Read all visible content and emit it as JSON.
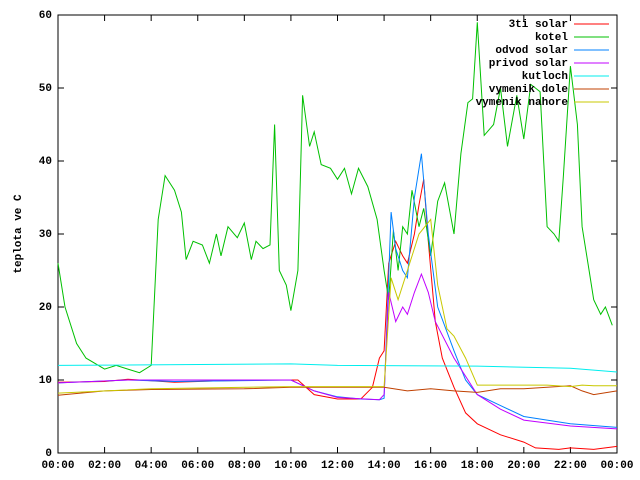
{
  "chart_data": {
    "type": "line",
    "y_label": "teplota ve C",
    "xlim": [
      0,
      24
    ],
    "xticks": [
      {
        "value": 0,
        "label": "00:00"
      },
      {
        "value": 2,
        "label": "02:00"
      },
      {
        "value": 4,
        "label": "04:00"
      },
      {
        "value": 6,
        "label": "06:00"
      },
      {
        "value": 8,
        "label": "08:00"
      },
      {
        "value": 10,
        "label": "10:00"
      },
      {
        "value": 12,
        "label": "12:00"
      },
      {
        "value": 14,
        "label": "14:00"
      },
      {
        "value": 16,
        "label": "16:00"
      },
      {
        "value": 18,
        "label": "18:00"
      },
      {
        "value": 20,
        "label": "20:00"
      },
      {
        "value": 22,
        "label": "22:00"
      },
      {
        "value": 24,
        "label": "00:00"
      }
    ],
    "ylim": [
      0,
      60
    ],
    "yticks": [
      0,
      10,
      20,
      30,
      40,
      50,
      60
    ],
    "grid": false,
    "legend": "top-right",
    "series": [
      {
        "name": "3ti solar",
        "color": "#ff0000",
        "x": [
          0,
          2,
          3,
          5,
          7,
          9,
          10.3,
          11,
          12,
          13,
          13.5,
          13.8,
          14,
          14.2,
          14.5,
          14.8,
          15,
          15.3,
          15.5,
          15.7,
          15.9,
          16.2,
          16.5,
          17,
          17.5,
          18,
          19,
          20,
          20.5,
          21.5,
          22,
          23,
          24
        ],
        "values": [
          9.7,
          9.8,
          10.1,
          9.7,
          9.9,
          10,
          10,
          8,
          7.4,
          7.4,
          9,
          13,
          14,
          26,
          29,
          27,
          26,
          30,
          34,
          37.5,
          29,
          18,
          13,
          9,
          5.5,
          4,
          2.5,
          1.5,
          0.7,
          0.5,
          0.7,
          0.5,
          0.9
        ]
      },
      {
        "name": "kotel",
        "color": "#00c000",
        "x": [
          0,
          0.3,
          0.8,
          1.2,
          2,
          2.5,
          3,
          3.5,
          4,
          4.3,
          4.6,
          5,
          5.3,
          5.5,
          5.8,
          6.2,
          6.5,
          6.8,
          7,
          7.3,
          7.7,
          8,
          8.3,
          8.5,
          8.8,
          9.1,
          9.3,
          9.5,
          9.8,
          10,
          10.3,
          10.5,
          10.8,
          11,
          11.3,
          11.7,
          12,
          12.3,
          12.6,
          12.9,
          13.3,
          13.7,
          14,
          14.2,
          14.4,
          14.6,
          14.8,
          15,
          15.2,
          15.5,
          15.7,
          16,
          16.3,
          16.6,
          17,
          17.3,
          17.6,
          17.8,
          18,
          18.3,
          18.7,
          19,
          19.3,
          19.7,
          20,
          20.3,
          20.7,
          21,
          21.3,
          21.5,
          21.7,
          22,
          22.3,
          22.5,
          22.8,
          23,
          23.3,
          23.5,
          23.8
        ],
        "values": [
          26,
          20,
          15,
          13,
          11.5,
          12,
          11.5,
          11,
          12,
          32,
          38,
          36,
          33,
          26.5,
          29,
          28.5,
          26,
          30,
          27,
          31,
          29.5,
          31.5,
          26.5,
          29,
          28,
          28.5,
          45,
          25,
          23,
          19.5,
          25,
          49,
          42,
          44,
          39.5,
          39,
          37.5,
          39,
          35.5,
          39,
          36.5,
          32,
          25,
          21,
          30.5,
          25,
          31,
          30,
          36,
          31,
          33.5,
          27,
          34.5,
          37,
          30,
          41,
          48,
          48.5,
          59,
          43.5,
          45,
          50,
          42,
          49,
          43,
          50.5,
          49.5,
          31,
          30,
          29,
          38,
          53,
          45,
          31,
          25,
          21,
          19,
          20,
          17.5
        ]
      },
      {
        "name": "odvod solar",
        "color": "#0080ff",
        "x": [
          0,
          3,
          5,
          10,
          11,
          12,
          13,
          13.8,
          14,
          14.3,
          14.5,
          14.8,
          15,
          15.3,
          15.6,
          15.9,
          16.3,
          17,
          17.5,
          18,
          19,
          20,
          22,
          24
        ],
        "values": [
          9.6,
          10,
          9.8,
          10,
          8.5,
          7.7,
          7.4,
          7.3,
          7.5,
          33,
          28,
          25,
          24,
          35,
          41,
          30,
          20,
          14,
          10,
          8,
          6.5,
          5,
          4,
          3.5
        ]
      },
      {
        "name": "privod solar",
        "color": "#c000ff",
        "x": [
          0,
          3,
          10,
          11,
          12,
          13.8,
          14,
          14.2,
          14.5,
          14.8,
          15,
          15.3,
          15.6,
          15.9,
          16.2,
          17,
          18,
          19,
          20,
          22,
          24
        ],
        "values": [
          9.6,
          10,
          10,
          8.5,
          7.6,
          7.3,
          8,
          22,
          18,
          20,
          19,
          22,
          24.5,
          22,
          18,
          13,
          8,
          6,
          4.5,
          3.7,
          3.3
        ]
      },
      {
        "name": "kutloch",
        "color": "#00eeee",
        "x": [
          0,
          10,
          12,
          18,
          22,
          24
        ],
        "values": [
          12,
          12.2,
          12,
          11.9,
          11.6,
          11.1
        ]
      },
      {
        "name": "vymenik dole",
        "color": "#c04000",
        "x": [
          0,
          2,
          4,
          8,
          10,
          14,
          15,
          16,
          17,
          18,
          19,
          20,
          22,
          22.5,
          23,
          24
        ],
        "values": [
          7.9,
          8.5,
          8.7,
          8.8,
          9,
          9,
          8.5,
          8.8,
          8.5,
          8.3,
          8.8,
          8.8,
          9.2,
          8.5,
          8,
          8.5
        ]
      },
      {
        "name": "vymenik nahore",
        "color": "#c8c800",
        "x": [
          0,
          4,
          10,
          14,
          14.3,
          14.6,
          15,
          15.5,
          16,
          16.3,
          16.7,
          17,
          17.5,
          18,
          19,
          21,
          22,
          22.5,
          23,
          24
        ],
        "values": [
          8.2,
          8.8,
          9.1,
          9.1,
          24,
          21,
          25,
          30,
          32,
          23,
          17,
          16,
          13,
          9.3,
          9.3,
          9.3,
          9.1,
          9.3,
          9.2,
          9.2
        ]
      }
    ]
  }
}
